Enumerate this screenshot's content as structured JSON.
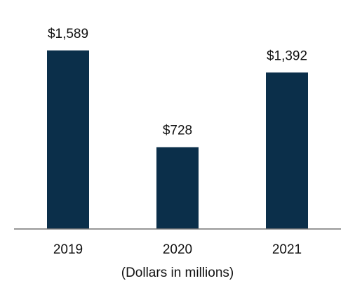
{
  "chart_data": {
    "type": "bar",
    "categories": [
      "2019",
      "2020",
      "2021"
    ],
    "values": [
      1589,
      728,
      1392
    ],
    "value_labels": [
      "$1,589",
      "$728",
      "$1,392"
    ],
    "color": "#0b2f4a",
    "xlabel": "(Dollars in millions)"
  }
}
